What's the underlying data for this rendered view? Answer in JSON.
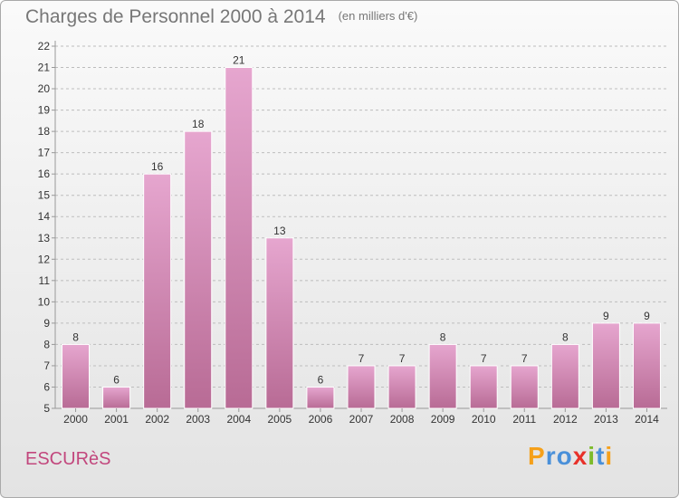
{
  "title": "Charges de Personnel 2000 à 2014",
  "subtitle": "(en milliers d'€)",
  "place_name": "ESCURèS",
  "brand": {
    "text": "Proxiti",
    "letters": [
      "P",
      "r",
      "o",
      "x",
      "i",
      "t",
      "i"
    ],
    "letter_colors": [
      "#f5a01a",
      "#4a90d9",
      "#4a90d9",
      "#e8312a",
      "#7dbb2a",
      "#4a90d9",
      "#f5a01a"
    ]
  },
  "colors": {
    "bar_top": "#e6a6cf",
    "bar_bottom": "#b86b95",
    "grid": "#bdbdbd",
    "axis": "#999999",
    "text": "#333333",
    "place": "#c2477d"
  },
  "chart_data": {
    "type": "bar",
    "categories": [
      "2000",
      "2001",
      "2002",
      "2003",
      "2004",
      "2005",
      "2006",
      "2007",
      "2008",
      "2009",
      "2010",
      "2011",
      "2012",
      "2013",
      "2014"
    ],
    "values": [
      8,
      6,
      16,
      18,
      21,
      13,
      6,
      7,
      7,
      8,
      7,
      7,
      8,
      9,
      9
    ],
    "data_labels": [
      "8",
      "6",
      "16",
      "18",
      "21",
      "13",
      "6",
      "7",
      "7",
      "8",
      "7",
      "7",
      "8",
      "9",
      "9"
    ],
    "y_ticks": [
      "5",
      "6",
      "7",
      "8",
      "9",
      "10",
      "11",
      "12",
      "13",
      "14",
      "15",
      "16",
      "17",
      "18",
      "19",
      "20",
      "21",
      "22"
    ],
    "ylim": [
      5,
      22
    ],
    "grid": true,
    "title": "Charges de Personnel 2000 à 2014",
    "xlabel": "",
    "ylabel": ""
  }
}
